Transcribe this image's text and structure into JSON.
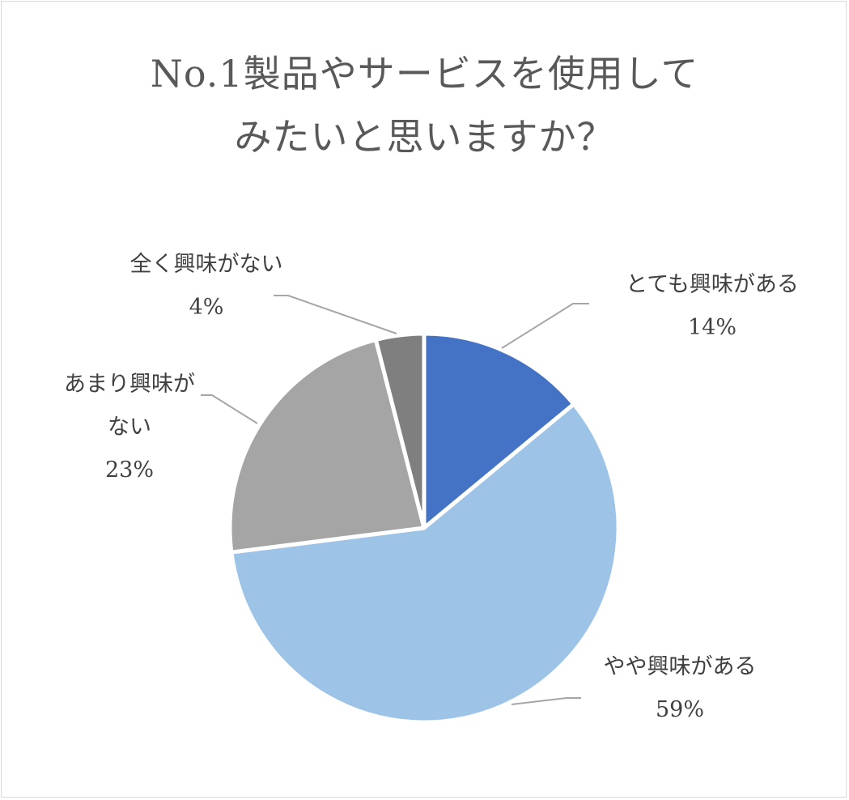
{
  "chart_data": {
    "type": "pie",
    "title_lines": [
      "No.1製品やサービスを使用して",
      "みたいと思いますか？"
    ],
    "slices": [
      {
        "label_lines": [
          "とても興味がある"
        ],
        "value": 14,
        "value_label": "14%",
        "color": "#4472c4"
      },
      {
        "label_lines": [
          "やや興味がある"
        ],
        "value": 59,
        "value_label": "59%",
        "color": "#9dc3e6"
      },
      {
        "label_lines": [
          "あまり興味が",
          "ない"
        ],
        "value": 23,
        "value_label": "23%",
        "color": "#a5a5a5"
      },
      {
        "label_lines": [
          "全く興味がない"
        ],
        "value": 4,
        "value_label": "4%",
        "color": "#7f7f7f"
      }
    ],
    "start": "12 o'clock",
    "direction": "clockwise",
    "legend": "none",
    "leader_line_color": "#a6a6a6"
  }
}
